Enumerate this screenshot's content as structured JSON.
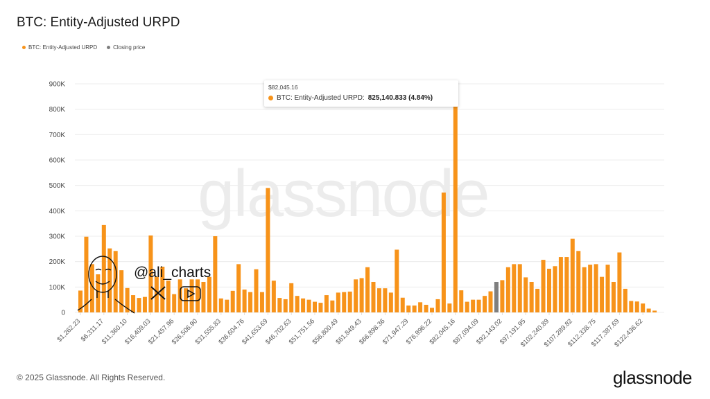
{
  "header": {
    "title": "BTC: Entity-Adjusted URPD"
  },
  "legend": [
    {
      "label": "BTC: Entity-Adjusted URPD",
      "color": "#f7931a"
    },
    {
      "label": "Closing price",
      "color": "#7f7f7f"
    }
  ],
  "tooltip": {
    "x": "$82,045.16",
    "series": "BTC: Entity-Adjusted URPD:",
    "value": "825,140.833 (4.84%)"
  },
  "watermark": "glassnode",
  "overlay": {
    "handle": "@ali_charts"
  },
  "footer": {
    "copyright": "© 2025 Glassnode. All Rights Reserved.",
    "logo": "glassnode"
  },
  "chart_data": {
    "type": "bar",
    "title": "BTC: Entity-Adjusted URPD",
    "bin_width": 1262.23,
    "ylim": [
      0,
      900000
    ],
    "yticks": [
      "0",
      "100K",
      "200K",
      "300K",
      "400K",
      "500K",
      "600K",
      "700K",
      "800K",
      "900K"
    ],
    "xtick_labels": [
      "$1,262.23",
      "$6,311.17",
      "$11,360.10",
      "$16,409.03",
      "$21,457.96",
      "$26,506.90",
      "$31,555.83",
      "$36,604.76",
      "$41,653.69",
      "$46,702.63",
      "$51,751.56",
      "$56,800.49",
      "$61,849.43",
      "$66,898.36",
      "$71,947.29",
      "$76,996.22",
      "$82,045.16",
      "$87,094.09",
      "$92,143.02",
      "$97,191.95",
      "$102,240.89",
      "$107,289.82",
      "$112,338.75",
      "$117,387.69",
      "$122,436.62"
    ],
    "grid": true,
    "legend_position": "top-left",
    "closing_price_bin_index": 71,
    "series": [
      {
        "name": "BTC: Entity-Adjusted URPD",
        "color": "#f7931a",
        "values": [
          86000,
          298000,
          190000,
          150000,
          344000,
          252000,
          242000,
          166000,
          96000,
          68000,
          57000,
          61000,
          303000,
          140000,
          180000,
          125000,
          72000,
          130000,
          95000,
          130000,
          130000,
          120000,
          140000,
          300000,
          55000,
          50000,
          85000,
          190000,
          90000,
          80000,
          170000,
          80000,
          490000,
          125000,
          57000,
          52000,
          115000,
          65000,
          55000,
          50000,
          42000,
          38000,
          68000,
          47000,
          78000,
          80000,
          82000,
          130000,
          135000,
          178000,
          120000,
          95000,
          95000,
          78000,
          247000,
          58000,
          27000,
          27000,
          40000,
          30000,
          18000,
          52000,
          472000,
          35000,
          825141,
          87000,
          42000,
          50000,
          50000,
          65000,
          83000,
          120000,
          127000,
          178000,
          190000,
          190000,
          138000,
          120000,
          93000,
          207000,
          172000,
          182000,
          218000,
          218000,
          290000,
          242000,
          178000,
          188000,
          190000,
          140000,
          188000,
          120000,
          236000,
          93000,
          45000,
          43000,
          35000,
          15000,
          7000
        ]
      }
    ],
    "closing_color": "#7f7f7f"
  }
}
